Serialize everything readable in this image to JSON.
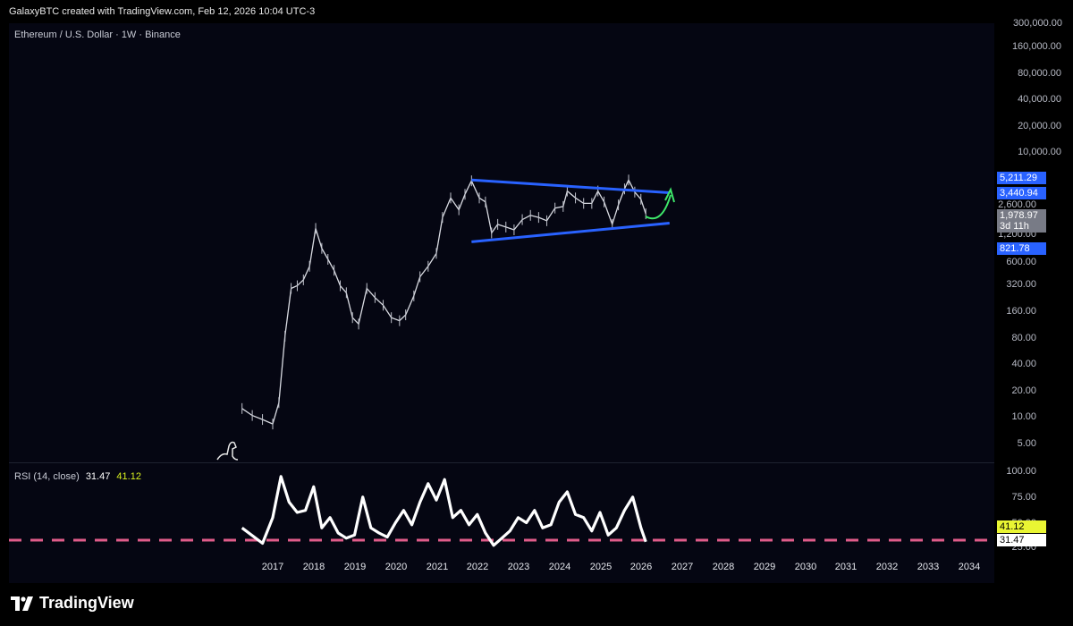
{
  "header": {
    "byline": "GalaxyBTC created with TradingView.com, Feb 12, 2026 10:04 UTC-3"
  },
  "chart": {
    "symbol_title": "Ethereum / U.S. Dollar · 1W · Binance",
    "price_scale_ticks": [
      "300,000.00",
      "160,000.00",
      "80,000.00",
      "40,000.00",
      "20,000.00",
      "10,000.00",
      "2,600.00",
      "1,200.00",
      "600.00",
      "320.00",
      "160.00",
      "80.00",
      "40.00",
      "20.00",
      "10.00",
      "5.00"
    ],
    "price_badges": {
      "upper_line": "5,211.29",
      "upper_line_2": "3,440.94",
      "last_price": "1,978.97",
      "countdown": "3d 11h",
      "lower_line": "821.78"
    },
    "x_axis_years": [
      "2017",
      "2018",
      "2019",
      "2020",
      "2021",
      "2022",
      "2023",
      "2024",
      "2025",
      "2026",
      "2027",
      "2028",
      "2029",
      "2030",
      "2031",
      "2032",
      "2033",
      "2034"
    ]
  },
  "rsi": {
    "label": "RSI (14, close)",
    "value": "31.47",
    "ma_value": "41.12",
    "scale_ticks": [
      "100.00",
      "75.00",
      "50.00",
      "25.00"
    ],
    "value_badge": "31.47",
    "ma_badge": "41.12"
  },
  "footer": {
    "brand": "TradingView"
  },
  "colors": {
    "background": "#050612",
    "trendline": "#2962ff",
    "arrow": "#3ee86a",
    "rsi_level": "#e05c8a",
    "badge_blue": "#2962ff",
    "badge_gray": "#787b86",
    "badge_yellow": "#e9f533"
  },
  "chart_data": {
    "type": "line",
    "title": "Ethereum / U.S. Dollar · 1W · Binance",
    "y_scale": "log",
    "ylim": [
      4,
      300000
    ],
    "xlim": [
      2016.5,
      2034.7
    ],
    "series": [
      {
        "name": "",
        "x": [
          2016.25,
          2016.5,
          2016.75,
          2017.0,
          2017.15,
          2017.3,
          2017.45,
          2017.6,
          2017.75,
          2017.9,
          2018.05,
          2018.2,
          2018.35,
          2018.5,
          2018.65,
          2018.8,
          2018.95,
          2019.1,
          2019.3,
          2019.5,
          2019.7,
          2019.9,
          2020.1,
          2020.25,
          2020.45,
          2020.6,
          2020.8,
          2021.0,
          2021.15,
          2021.35,
          2021.55,
          2021.7,
          2021.86,
          2022.05,
          2022.2,
          2022.35,
          2022.5,
          2022.7,
          2022.9,
          2023.1,
          2023.3,
          2023.5,
          2023.7,
          2023.9,
          2024.1,
          2024.2,
          2024.4,
          2024.6,
          2024.8,
          2024.95,
          2025.1,
          2025.3,
          2025.45,
          2025.6,
          2025.7,
          2025.85,
          2026.0,
          2026.12
        ],
        "y": [
          12,
          10,
          9,
          8,
          14,
          80,
          280,
          300,
          350,
          500,
          1350,
          800,
          600,
          450,
          300,
          250,
          130,
          110,
          280,
          220,
          180,
          130,
          120,
          140,
          230,
          380,
          500,
          700,
          1800,
          3000,
          2200,
          3300,
          4700,
          3000,
          2700,
          1200,
          1500,
          1400,
          1300,
          1700,
          1900,
          1800,
          1650,
          2300,
          2400,
          3600,
          3000,
          2600,
          2600,
          3600,
          2700,
          1500,
          2500,
          3800,
          4800,
          3500,
          2900,
          1979
        ]
      }
    ],
    "trendlines": [
      {
        "name": "",
        "points": [
          [
            2021.86,
            4800
          ],
          [
            2026.7,
            3440.94
          ]
        ]
      },
      {
        "name": "",
        "points": [
          [
            2021.86,
            950
          ],
          [
            2026.7,
            1550
          ]
        ]
      }
    ],
    "rsi_series": {
      "x": [
        2016.25,
        2016.75,
        2017.0,
        2017.2,
        2017.4,
        2017.6,
        2017.8,
        2018.0,
        2018.2,
        2018.4,
        2018.6,
        2018.8,
        2019.0,
        2019.2,
        2019.4,
        2019.6,
        2019.8,
        2020.0,
        2020.2,
        2020.4,
        2020.6,
        2020.8,
        2021.0,
        2021.2,
        2021.4,
        2021.6,
        2021.8,
        2022.0,
        2022.2,
        2022.4,
        2022.6,
        2022.8,
        2023.0,
        2023.2,
        2023.4,
        2023.6,
        2023.8,
        2024.0,
        2024.2,
        2024.4,
        2024.6,
        2024.8,
        2025.0,
        2025.2,
        2025.4,
        2025.6,
        2025.8,
        2026.0,
        2026.12
      ],
      "y": [
        45,
        30,
        55,
        95,
        70,
        60,
        62,
        85,
        45,
        55,
        40,
        35,
        38,
        75,
        45,
        40,
        36,
        50,
        62,
        48,
        70,
        88,
        72,
        92,
        55,
        62,
        48,
        58,
        40,
        28,
        35,
        42,
        55,
        50,
        62,
        45,
        48,
        70,
        80,
        58,
        55,
        42,
        60,
        38,
        45,
        62,
        75,
        45,
        31.47
      ]
    },
    "rsi_level": 30
  }
}
